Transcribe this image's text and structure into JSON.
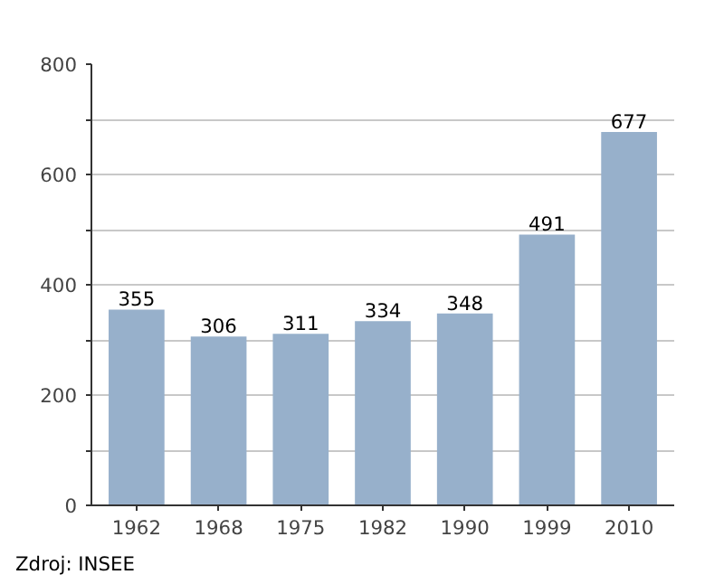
{
  "chart_data": {
    "type": "bar",
    "categories": [
      "1962",
      "1968",
      "1975",
      "1982",
      "1990",
      "1999",
      "2010"
    ],
    "values": [
      355,
      306,
      311,
      334,
      348,
      491,
      677
    ],
    "color": "#97b0cb",
    "data_labels": true,
    "ylim": [
      0,
      800
    ],
    "yticks": [
      0,
      {
        "value": 100,
        "label": null
      },
      200,
      {
        "value": 300,
        "label": null
      },
      400,
      {
        "value": 500,
        "label": null
      },
      600,
      {
        "value": 700,
        "label": null
      },
      800
    ],
    "grid": "y",
    "annotations": [
      "Zdroj: INSEE"
    ]
  }
}
